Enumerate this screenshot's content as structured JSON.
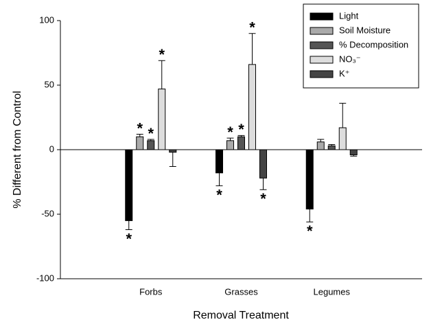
{
  "chart_data": {
    "type": "bar",
    "x_label": "Removal Treatment",
    "y_label": "% Different from Control",
    "categories": [
      "Forbs",
      "Grasses",
      "Legumes"
    ],
    "ylim": [
      -100,
      100
    ],
    "yticks": [
      -100,
      -50,
      0,
      50,
      100
    ],
    "legend": "top-right",
    "significance_marker": "*",
    "series": [
      {
        "name": "Light",
        "color": "#000000",
        "values": [
          -55,
          -18,
          -46
        ],
        "errors": [
          7,
          10,
          10
        ],
        "significant": [
          true,
          true,
          true
        ]
      },
      {
        "name": "Soil Moisture",
        "color": "#aaaaaa",
        "values": [
          10,
          7,
          6
        ],
        "errors": [
          2,
          2,
          2
        ],
        "significant": [
          true,
          true,
          false
        ]
      },
      {
        "name": "% Decomposition",
        "color": "#555555",
        "values": [
          7,
          10,
          3
        ],
        "errors": [
          1,
          1,
          1
        ],
        "significant": [
          true,
          true,
          false
        ]
      },
      {
        "name": "NO₃⁻",
        "color": "#dddddd",
        "values": [
          47,
          66,
          17
        ],
        "errors": [
          22,
          24,
          19
        ],
        "significant": [
          true,
          true,
          false
        ]
      },
      {
        "name": "K⁺",
        "color": "#444444",
        "values": [
          -2,
          -22,
          -4
        ],
        "errors": [
          11,
          9,
          1
        ],
        "significant": [
          false,
          true,
          false
        ]
      }
    ]
  }
}
